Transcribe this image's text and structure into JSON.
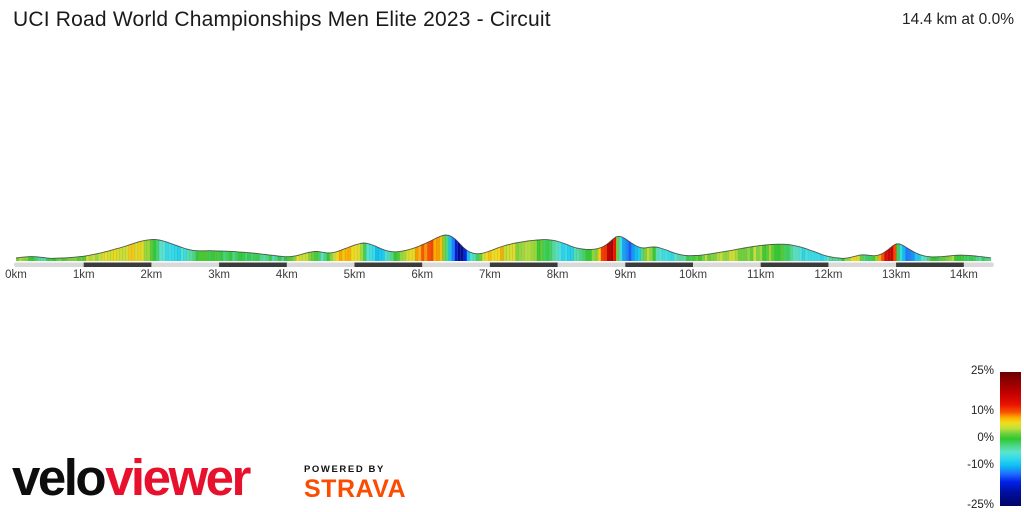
{
  "header": {
    "title": "UCI Road World Championships Men Elite 2023 - Circuit",
    "summary": "14.4 km at 0.0%"
  },
  "chart_data": {
    "type": "area",
    "title": "UCI Road World Championships Men Elite 2023 - Circuit",
    "summary_label": "14.4 km at 0.0%",
    "total_distance_km": 14.4,
    "average_gradient_pct": 0.0,
    "x_unit": "km",
    "x_range": [
      0,
      14.4
    ],
    "x_ticks": [
      "0km",
      "1km",
      "2km",
      "3km",
      "4km",
      "5km",
      "6km",
      "7km",
      "8km",
      "9km",
      "10km",
      "11km",
      "12km",
      "13km",
      "14km"
    ],
    "y_unit": "relative elevation (m)",
    "grid": false,
    "profile_points": [
      [
        0,
        7.5
      ],
      [
        0.15,
        11
      ],
      [
        0.3,
        11
      ],
      [
        0.5,
        6.5
      ],
      [
        0.7,
        7.5
      ],
      [
        0.9,
        10
      ],
      [
        1.05,
        13
      ],
      [
        1.3,
        22
      ],
      [
        1.6,
        36
      ],
      [
        1.85,
        50
      ],
      [
        2.0,
        54
      ],
      [
        2.1,
        54
      ],
      [
        2.25,
        46
      ],
      [
        2.4,
        37
      ],
      [
        2.55,
        28
      ],
      [
        2.7,
        25
      ],
      [
        2.85,
        26
      ],
      [
        3.0,
        25
      ],
      [
        3.2,
        24
      ],
      [
        3.5,
        20
      ],
      [
        3.8,
        14
      ],
      [
        4.0,
        10
      ],
      [
        4.15,
        13
      ],
      [
        4.3,
        21
      ],
      [
        4.45,
        25
      ],
      [
        4.57,
        20
      ],
      [
        4.68,
        20
      ],
      [
        4.8,
        27
      ],
      [
        5.0,
        40
      ],
      [
        5.15,
        47
      ],
      [
        5.3,
        38
      ],
      [
        5.45,
        26
      ],
      [
        5.6,
        22
      ],
      [
        5.75,
        26
      ],
      [
        5.9,
        33
      ],
      [
        6.1,
        48
      ],
      [
        6.25,
        61
      ],
      [
        6.37,
        68
      ],
      [
        6.5,
        55
      ],
      [
        6.62,
        30
      ],
      [
        6.73,
        19
      ],
      [
        6.85,
        17
      ],
      [
        7.0,
        25
      ],
      [
        7.2,
        38
      ],
      [
        7.4,
        46
      ],
      [
        7.6,
        51
      ],
      [
        7.8,
        54
      ],
      [
        7.95,
        52
      ],
      [
        8.1,
        44
      ],
      [
        8.25,
        33
      ],
      [
        8.4,
        29
      ],
      [
        8.55,
        29
      ],
      [
        8.65,
        33
      ],
      [
        8.77,
        46
      ],
      [
        8.87,
        65
      ],
      [
        8.97,
        60
      ],
      [
        9.1,
        43
      ],
      [
        9.25,
        30
      ],
      [
        9.35,
        35
      ],
      [
        9.45,
        36
      ],
      [
        9.6,
        28
      ],
      [
        9.75,
        18
      ],
      [
        9.9,
        13
      ],
      [
        10.1,
        14
      ],
      [
        10.3,
        19
      ],
      [
        10.55,
        26
      ],
      [
        10.8,
        34
      ],
      [
        11.0,
        39
      ],
      [
        11.2,
        42
      ],
      [
        11.4,
        42
      ],
      [
        11.6,
        35
      ],
      [
        11.8,
        23
      ],
      [
        11.95,
        13
      ],
      [
        12.1,
        8
      ],
      [
        12.25,
        6
      ],
      [
        12.4,
        12
      ],
      [
        12.5,
        17
      ],
      [
        12.6,
        14
      ],
      [
        12.72,
        12
      ],
      [
        12.82,
        20
      ],
      [
        12.92,
        33
      ],
      [
        13.0,
        47
      ],
      [
        13.1,
        40
      ],
      [
        13.2,
        28
      ],
      [
        13.35,
        15
      ],
      [
        13.5,
        10
      ],
      [
        13.7,
        11
      ],
      [
        13.9,
        15
      ],
      [
        14.1,
        14
      ],
      [
        14.25,
        11
      ],
      [
        14.4,
        8
      ]
    ],
    "gradient_colormap": [
      {
        "pct": -25,
        "color": "#000566"
      },
      {
        "pct": -20,
        "color": "#000e9e"
      },
      {
        "pct": -16,
        "color": "#0021e8"
      },
      {
        "pct": -13,
        "color": "#1f6dff"
      },
      {
        "pct": -10,
        "color": "#0fbdf2"
      },
      {
        "pct": -7,
        "color": "#35dcea"
      },
      {
        "pct": -5,
        "color": "#5ce3cf"
      },
      {
        "pct": -3,
        "color": "#51d998"
      },
      {
        "pct": -1,
        "color": "#3bcf52"
      },
      {
        "pct": 0,
        "color": "#2ec82e"
      },
      {
        "pct": 2,
        "color": "#6ed03c"
      },
      {
        "pct": 4,
        "color": "#c0e03c"
      },
      {
        "pct": 6,
        "color": "#f0dc1e"
      },
      {
        "pct": 8,
        "color": "#fdae00"
      },
      {
        "pct": 10,
        "color": "#f95300"
      },
      {
        "pct": 13,
        "color": "#e81000"
      },
      {
        "pct": 17,
        "color": "#c40000"
      },
      {
        "pct": 21,
        "color": "#970000"
      },
      {
        "pct": 25,
        "color": "#6b0000"
      }
    ],
    "legend": {
      "position": "right",
      "ticks": [
        {
          "label": "25%",
          "value": 25
        },
        {
          "label": "10%",
          "value": 10
        },
        {
          "label": "0%",
          "value": 0
        },
        {
          "label": "-10%",
          "value": -10
        },
        {
          "label": "-25%",
          "value": -25
        }
      ]
    },
    "distance_bar": {
      "pattern": "alternating 1 km segments",
      "light_color": "#d9d9d9",
      "dark_color": "#3b3b3b"
    }
  },
  "footer": {
    "brand_part1": "velo",
    "brand_part2": "viewer",
    "brand_color1": "#0d0d0d",
    "brand_color2": "#e8112d",
    "powered_by_label": "POWERED BY",
    "strava_label": "STRAVA",
    "strava_color": "#fc4c02"
  }
}
